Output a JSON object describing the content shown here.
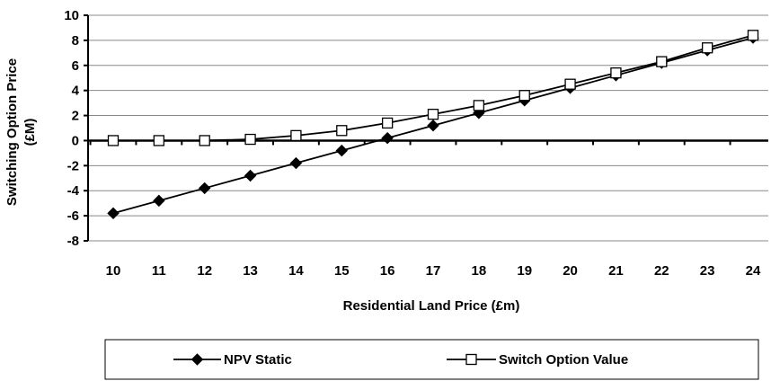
{
  "chart_data": {
    "type": "line",
    "x": [
      10,
      11,
      12,
      13,
      14,
      15,
      16,
      17,
      18,
      19,
      20,
      21,
      22,
      23,
      24
    ],
    "x_tick_labels": [
      "10",
      "11",
      "12",
      "13",
      "14",
      "15",
      "16",
      "17",
      "18",
      "19",
      "20",
      "21",
      "22",
      "23",
      "24"
    ],
    "y_tick_labels": [
      "10",
      "8",
      "6",
      "4",
      "2",
      "0",
      "-2",
      "-4",
      "-6",
      "-8"
    ],
    "y_ticks": [
      10,
      8,
      6,
      4,
      2,
      0,
      -2,
      -4,
      -6,
      -8
    ],
    "ylim": [
      -8,
      10
    ],
    "xlabel": "Residential Land Price (£m)",
    "ylabel_line1": "Switching Option Price",
    "ylabel_line2": "(£M)",
    "grid": "horizontal",
    "legend_position": "bottom",
    "series": [
      {
        "name": "NPV Static",
        "marker": "filled-diamond",
        "color": "#000000",
        "values": [
          -5.8,
          -4.8,
          -3.8,
          -2.8,
          -1.8,
          -0.8,
          0.2,
          1.2,
          2.2,
          3.2,
          4.2,
          5.2,
          6.2,
          7.2,
          8.2
        ]
      },
      {
        "name": "Switch Option Value",
        "marker": "open-square",
        "color": "#000000",
        "values": [
          0.0,
          0.0,
          0.0,
          0.1,
          0.4,
          0.8,
          1.4,
          2.1,
          2.8,
          3.6,
          4.5,
          5.4,
          6.3,
          7.4,
          8.4
        ]
      }
    ]
  }
}
